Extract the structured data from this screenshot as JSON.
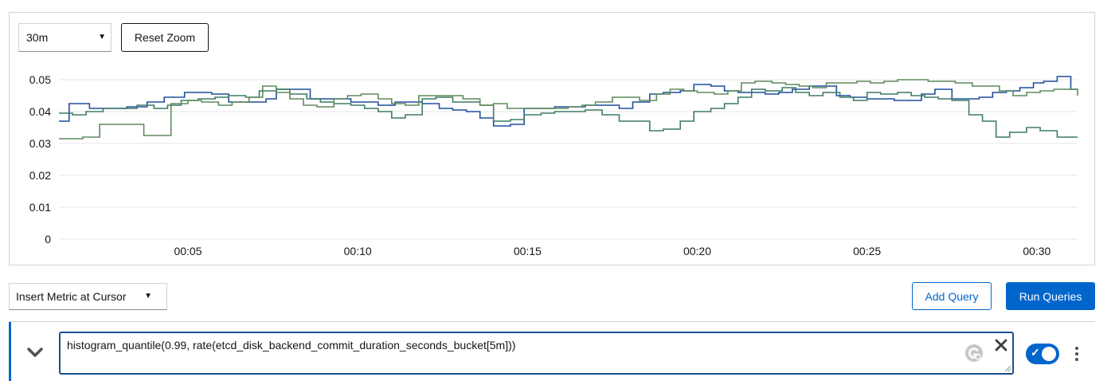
{
  "toolbar": {
    "time_range": "30m",
    "reset_zoom_label": "Reset Zoom"
  },
  "chart_data": {
    "type": "line",
    "ylim": [
      0,
      0.05
    ],
    "y_ticks": [
      "0",
      "0.01",
      "0.02",
      "0.03",
      "0.04",
      "0.05"
    ],
    "x_ticks": [
      "00:05",
      "00:10",
      "00:15",
      "00:20",
      "00:25",
      "00:30"
    ],
    "x_tick_minutes": [
      5,
      10,
      15,
      20,
      25,
      30
    ],
    "xlim": [
      1.2,
      31.2
    ],
    "grid": true,
    "series": [
      {
        "color": "#1e4f9c",
        "x": [
          1.2,
          1.5,
          1.8,
          2.1,
          2.6,
          2.9,
          3.2,
          3.8,
          4.3,
          4.9,
          5.3,
          5.7,
          6.2,
          6.7,
          7.0,
          7.3,
          7.6,
          8.1,
          8.6,
          8.9,
          9.3,
          9.8,
          10.2,
          10.6,
          11.1,
          11.5,
          11.9,
          12.4,
          12.8,
          13.2,
          13.6,
          14.0,
          14.5,
          14.9,
          15.4,
          15.8,
          16.3,
          16.7,
          17.2,
          17.7,
          18.1,
          18.6,
          19.0,
          19.5,
          19.9,
          20.4,
          20.8,
          21.2,
          21.6,
          22.0,
          22.4,
          22.8,
          23.3,
          23.7,
          24.1,
          24.5,
          25.0,
          25.4,
          25.8,
          26.2,
          26.6,
          27.0,
          27.5,
          27.9,
          28.3,
          28.7,
          29.1,
          29.5,
          29.9,
          30.2,
          30.6,
          31.0,
          31.2
        ],
        "y": [
          0.037,
          0.0425,
          0.0425,
          0.041,
          0.041,
          0.041,
          0.0415,
          0.043,
          0.0445,
          0.046,
          0.046,
          0.0455,
          0.043,
          0.043,
          0.043,
          0.044,
          0.047,
          0.047,
          0.044,
          0.044,
          0.044,
          0.043,
          0.043,
          0.042,
          0.043,
          0.043,
          0.0425,
          0.041,
          0.0405,
          0.04,
          0.038,
          0.0355,
          0.036,
          0.041,
          0.041,
          0.0415,
          0.0415,
          0.042,
          0.042,
          0.041,
          0.043,
          0.0455,
          0.046,
          0.0465,
          0.0485,
          0.048,
          0.0465,
          0.046,
          0.046,
          0.0455,
          0.046,
          0.047,
          0.048,
          0.048,
          0.045,
          0.0445,
          0.044,
          0.044,
          0.0435,
          0.0435,
          0.0455,
          0.047,
          0.044,
          0.044,
          0.0445,
          0.046,
          0.0465,
          0.0475,
          0.049,
          0.0495,
          0.051,
          0.047,
          0.047
        ]
      },
      {
        "color": "#3d7c64",
        "x": [
          1.2,
          1.6,
          2.0,
          2.5,
          3.0,
          3.5,
          4.0,
          4.4,
          4.8,
          5.3,
          5.8,
          6.2,
          6.7,
          7.1,
          7.6,
          8.0,
          8.5,
          8.9,
          9.3,
          9.8,
          10.2,
          10.6,
          11.0,
          11.4,
          11.9,
          12.3,
          12.8,
          13.2,
          13.6,
          14.0,
          14.5,
          14.9,
          15.4,
          15.8,
          16.3,
          16.7,
          17.2,
          17.7,
          18.1,
          18.6,
          19.0,
          19.5,
          19.9,
          20.4,
          20.8,
          21.2,
          21.6,
          22.0,
          22.5,
          22.9,
          23.3,
          23.7,
          24.2,
          24.6,
          25.0,
          25.4,
          25.9,
          26.3,
          26.7,
          27.1,
          27.5,
          28.0,
          28.4,
          28.8,
          29.2,
          29.7,
          30.1,
          30.6,
          31.0,
          31.2
        ],
        "y": [
          0.0395,
          0.039,
          0.04,
          0.041,
          0.041,
          0.042,
          0.041,
          0.042,
          0.0435,
          0.044,
          0.0445,
          0.045,
          0.0445,
          0.0465,
          0.047,
          0.0455,
          0.044,
          0.043,
          0.0425,
          0.042,
          0.041,
          0.04,
          0.038,
          0.039,
          0.044,
          0.0445,
          0.043,
          0.043,
          0.042,
          0.037,
          0.0375,
          0.039,
          0.0395,
          0.04,
          0.04,
          0.0405,
          0.039,
          0.037,
          0.037,
          0.034,
          0.0345,
          0.037,
          0.04,
          0.041,
          0.0425,
          0.0445,
          0.047,
          0.0465,
          0.0475,
          0.046,
          0.045,
          0.046,
          0.0445,
          0.0435,
          0.046,
          0.0455,
          0.046,
          0.045,
          0.0445,
          0.044,
          0.0435,
          0.039,
          0.037,
          0.032,
          0.0335,
          0.035,
          0.034,
          0.032,
          0.032,
          0.032
        ]
      },
      {
        "color": "#5e8a5b",
        "x": [
          1.2,
          1.5,
          1.9,
          2.4,
          2.8,
          3.2,
          3.7,
          4.1,
          4.5,
          5.0,
          5.4,
          5.9,
          6.3,
          6.8,
          7.2,
          7.6,
          8.0,
          8.4,
          8.8,
          9.3,
          9.7,
          10.1,
          10.6,
          11.0,
          11.4,
          11.8,
          12.3,
          12.7,
          13.1,
          13.6,
          14.0,
          14.4,
          14.9,
          15.3,
          15.7,
          16.2,
          16.6,
          17.0,
          17.5,
          17.9,
          18.3,
          18.8,
          19.2,
          19.6,
          20.0,
          20.5,
          20.9,
          21.3,
          21.7,
          22.2,
          22.6,
          23.0,
          23.4,
          23.8,
          24.3,
          24.7,
          25.1,
          25.5,
          25.9,
          26.4,
          26.8,
          27.2,
          27.6,
          28.1,
          28.5,
          28.9,
          29.3,
          29.7,
          30.1,
          30.5,
          30.9,
          31.2
        ],
        "y": [
          0.0315,
          0.0315,
          0.032,
          0.036,
          0.036,
          0.036,
          0.0325,
          0.0325,
          0.0425,
          0.0435,
          0.043,
          0.042,
          0.043,
          0.0445,
          0.048,
          0.046,
          0.044,
          0.042,
          0.0415,
          0.044,
          0.045,
          0.0455,
          0.044,
          0.0425,
          0.042,
          0.045,
          0.045,
          0.045,
          0.044,
          0.042,
          0.0425,
          0.041,
          0.041,
          0.041,
          0.041,
          0.0415,
          0.042,
          0.043,
          0.0445,
          0.0445,
          0.0435,
          0.0455,
          0.047,
          0.0465,
          0.046,
          0.0455,
          0.0465,
          0.049,
          0.0495,
          0.049,
          0.0485,
          0.048,
          0.0475,
          0.049,
          0.049,
          0.0495,
          0.049,
          0.0495,
          0.05,
          0.05,
          0.0495,
          0.0495,
          0.049,
          0.048,
          0.048,
          0.0465,
          0.045,
          0.046,
          0.0465,
          0.047,
          0.047,
          0.045
        ]
      }
    ]
  },
  "controls": {
    "insert_metric_label": "Insert Metric at Cursor",
    "add_query_label": "Add Query",
    "run_queries_label": "Run Queries"
  },
  "query": {
    "expression": "histogram_quantile(0.99, rate(etcd_disk_backend_commit_duration_seconds_bucket[5m]))",
    "enabled": true
  },
  "icons": {
    "expand": "chevron-down-icon",
    "grammarly": "grammarly-icon",
    "clear": "close-icon",
    "kebab": "kebab-icon"
  }
}
